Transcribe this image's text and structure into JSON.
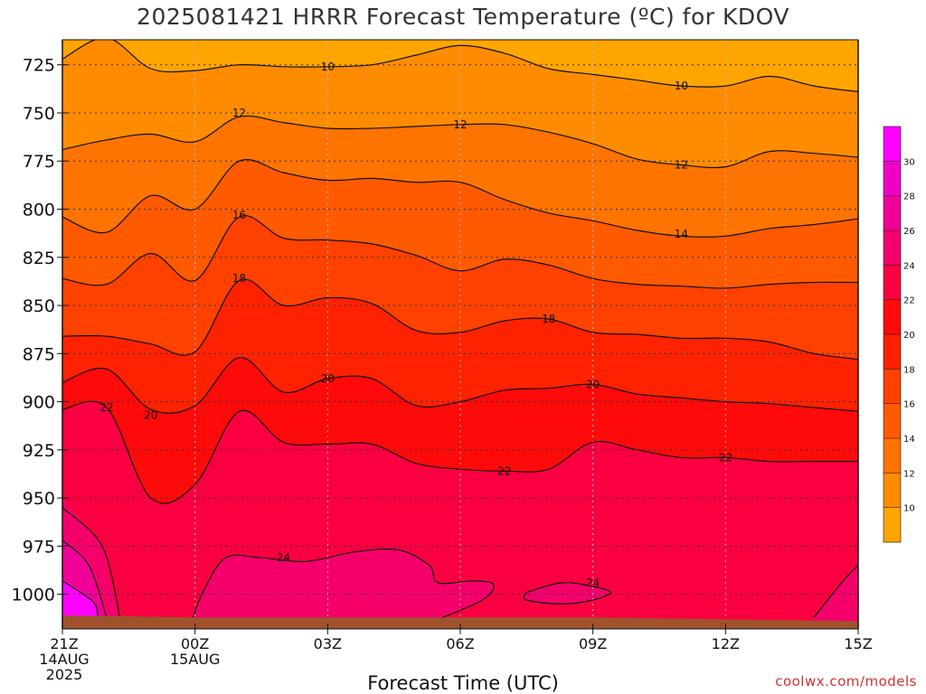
{
  "chart_data": {
    "type": "heatmap",
    "title": "2025081421 HRRR Forecast Temperature (ºC) for KDOV",
    "xlabel": "Forecast Time (UTC)",
    "ylabel": "",
    "credit": "coolwx.com/models",
    "y_ticks": [
      725,
      750,
      775,
      800,
      825,
      850,
      875,
      900,
      925,
      950,
      975,
      1000
    ],
    "ylim": [
      1018,
      712
    ],
    "x_ticks": [
      {
        "hour": 0,
        "lines": [
          "21Z",
          "14AUG",
          "2025"
        ]
      },
      {
        "hour": 3,
        "lines": [
          "00Z",
          "15AUG"
        ]
      },
      {
        "hour": 6,
        "lines": [
          "03Z"
        ]
      },
      {
        "hour": 9,
        "lines": [
          "06Z"
        ]
      },
      {
        "hour": 12,
        "lines": [
          "09Z"
        ]
      },
      {
        "hour": 15,
        "lines": [
          "12Z"
        ]
      },
      {
        "hour": 18,
        "lines": [
          "15Z"
        ]
      }
    ],
    "xlim": [
      0,
      18
    ],
    "colorbar": {
      "labels": [
        10,
        12,
        14,
        16,
        18,
        20,
        22,
        24,
        26,
        28,
        30
      ],
      "colors": [
        "#ffa500",
        "#ff8c00",
        "#ff7300",
        "#ff5a00",
        "#ff4100",
        "#ff2200",
        "#ff0a0a",
        "#fb0040",
        "#f5006a",
        "#f00096",
        "#f000c8",
        "#ff00ff"
      ]
    },
    "contours": [
      {
        "value": 10,
        "points": [
          [
            0,
            722
          ],
          [
            1,
            711
          ],
          [
            2,
            727
          ],
          [
            3,
            728
          ],
          [
            4,
            725
          ],
          [
            5,
            726
          ],
          [
            6,
            726
          ],
          [
            7,
            725
          ],
          [
            8,
            720
          ],
          [
            9,
            715
          ],
          [
            10,
            719
          ],
          [
            11,
            727
          ],
          [
            12,
            730
          ],
          [
            13,
            733
          ],
          [
            14,
            736
          ],
          [
            15,
            736
          ],
          [
            16,
            731
          ],
          [
            17,
            736
          ],
          [
            18,
            739
          ]
        ]
      },
      {
        "value": 12,
        "points": [
          [
            0,
            769
          ],
          [
            1,
            764
          ],
          [
            2,
            761
          ],
          [
            3,
            765
          ],
          [
            4,
            752
          ],
          [
            5,
            755
          ],
          [
            6,
            758
          ],
          [
            7,
            758
          ],
          [
            8,
            757
          ],
          [
            9,
            756
          ],
          [
            10,
            756
          ],
          [
            11,
            760
          ],
          [
            12,
            766
          ],
          [
            13,
            774
          ],
          [
            14,
            777
          ],
          [
            15,
            778
          ],
          [
            16,
            770
          ],
          [
            17,
            771
          ],
          [
            18,
            773
          ]
        ]
      },
      {
        "value": 14,
        "points": [
          [
            0,
            804
          ],
          [
            1,
            812
          ],
          [
            2,
            793
          ],
          [
            3,
            800
          ],
          [
            4,
            775
          ],
          [
            5,
            781
          ],
          [
            6,
            785
          ],
          [
            7,
            784
          ],
          [
            8,
            786
          ],
          [
            9,
            786
          ],
          [
            10,
            795
          ],
          [
            11,
            802
          ],
          [
            12,
            806
          ],
          [
            13,
            811
          ],
          [
            14,
            814
          ],
          [
            15,
            814
          ],
          [
            16,
            810
          ],
          [
            17,
            808
          ],
          [
            18,
            805
          ]
        ]
      },
      {
        "value": 16,
        "points": [
          [
            0,
            836
          ],
          [
            1,
            839
          ],
          [
            2,
            823
          ],
          [
            3,
            837
          ],
          [
            4,
            804
          ],
          [
            5,
            815
          ],
          [
            6,
            816
          ],
          [
            7,
            818
          ],
          [
            8,
            824
          ],
          [
            9,
            832
          ],
          [
            10,
            826
          ],
          [
            11,
            829
          ],
          [
            12,
            836
          ],
          [
            13,
            839
          ],
          [
            14,
            840
          ],
          [
            15,
            841
          ],
          [
            16,
            839
          ],
          [
            17,
            838
          ],
          [
            18,
            838
          ]
        ]
      },
      {
        "value": 18,
        "points": [
          [
            0,
            866
          ],
          [
            1,
            866
          ],
          [
            2,
            870
          ],
          [
            3,
            874
          ],
          [
            4,
            837
          ],
          [
            5,
            850
          ],
          [
            6,
            846
          ],
          [
            7,
            849
          ],
          [
            8,
            863
          ],
          [
            9,
            864
          ],
          [
            10,
            858
          ],
          [
            11,
            857
          ],
          [
            12,
            864
          ],
          [
            13,
            865
          ],
          [
            14,
            867
          ],
          [
            15,
            867
          ],
          [
            16,
            869
          ],
          [
            17,
            875
          ],
          [
            18,
            878
          ]
        ]
      },
      {
        "value": 20,
        "points": [
          [
            0,
            890
          ],
          [
            1,
            883
          ],
          [
            2,
            904
          ],
          [
            3,
            902
          ],
          [
            4,
            877
          ],
          [
            5,
            895
          ],
          [
            6,
            888
          ],
          [
            7,
            888
          ],
          [
            8,
            902
          ],
          [
            9,
            900
          ],
          [
            10,
            894
          ],
          [
            11,
            893
          ],
          [
            12,
            891
          ],
          [
            13,
            896
          ],
          [
            14,
            898
          ],
          [
            15,
            900
          ],
          [
            16,
            901
          ],
          [
            17,
            903
          ],
          [
            18,
            905
          ]
        ]
      },
      {
        "value": 22,
        "points": [
          [
            0,
            904
          ],
          [
            1,
            903
          ],
          [
            2,
            950
          ],
          [
            3,
            943
          ],
          [
            4,
            905
          ],
          [
            5,
            921
          ],
          [
            6,
            922
          ],
          [
            7,
            922
          ],
          [
            8,
            932
          ],
          [
            9,
            935
          ],
          [
            10,
            936
          ],
          [
            11,
            935
          ],
          [
            12,
            921
          ],
          [
            13,
            925
          ],
          [
            14,
            929
          ],
          [
            15,
            929
          ],
          [
            16,
            931
          ],
          [
            17,
            931
          ],
          [
            18,
            931
          ]
        ]
      },
      {
        "value": 24,
        "points": [
          [
            2.95,
            1012
          ],
          [
            3.2,
            998
          ],
          [
            3.7,
            981
          ],
          [
            4.5,
            981
          ],
          [
            5.5,
            983
          ],
          [
            6.6,
            978
          ],
          [
            7.6,
            977
          ],
          [
            8.3,
            985
          ],
          [
            8.5,
            994
          ],
          [
            9.3,
            993
          ],
          [
            9.75,
            995
          ],
          [
            9.5,
            1003
          ],
          [
            8.5,
            1013
          ]
        ]
      },
      {
        "value": 24,
        "points": [
          [
            10.5,
            999
          ],
          [
            11.3,
            994
          ],
          [
            12,
            996
          ],
          [
            12.4,
            999
          ],
          [
            12,
            1003
          ],
          [
            11.3,
            1005
          ],
          [
            10.5,
            1003
          ],
          [
            10.5,
            999
          ]
        ]
      },
      {
        "value": 24,
        "points": [
          [
            17,
            1012
          ],
          [
            17.7,
            992
          ],
          [
            18,
            985
          ]
        ]
      }
    ],
    "contour_labels": [
      {
        "value": 10,
        "hour": 6.0,
        "hpa": 726
      },
      {
        "value": 10,
        "hour": 14.0,
        "hpa": 736
      },
      {
        "value": 12,
        "hour": 4.0,
        "hpa": 750
      },
      {
        "value": 12,
        "hour": 9.0,
        "hpa": 756
      },
      {
        "value": 12,
        "hour": 14.0,
        "hpa": 777
      },
      {
        "value": 14,
        "hour": 14.0,
        "hpa": 813
      },
      {
        "value": 16,
        "hour": 4.0,
        "hpa": 803
      },
      {
        "value": 18,
        "hour": 4.0,
        "hpa": 836
      },
      {
        "value": 18,
        "hour": 11.0,
        "hpa": 857
      },
      {
        "value": 20,
        "hour": 2.0,
        "hpa": 907
      },
      {
        "value": 20,
        "hour": 6.0,
        "hpa": 888
      },
      {
        "value": 20,
        "hour": 12.0,
        "hpa": 891
      },
      {
        "value": 22,
        "hour": 1.0,
        "hpa": 903
      },
      {
        "value": 22,
        "hour": 10.0,
        "hpa": 936
      },
      {
        "value": 22,
        "hour": 15.0,
        "hpa": 929
      },
      {
        "value": 24,
        "hour": 5.0,
        "hpa": 981
      },
      {
        "value": 24,
        "hour": 12.0,
        "hpa": 994
      }
    ],
    "surface_pressure": [
      [
        0,
        1011
      ],
      [
        3,
        1012
      ],
      [
        6,
        1012
      ],
      [
        9,
        1012
      ],
      [
        12,
        1012
      ],
      [
        15,
        1013
      ],
      [
        18,
        1014
      ]
    ],
    "grid": true
  }
}
